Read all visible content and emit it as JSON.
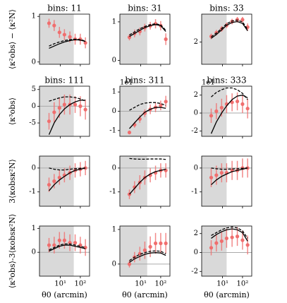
{
  "chart_data": [
    {
      "type": "line",
      "title": "bins: 11",
      "ylabel": "⟨κ²obs⟩ − ⟨κ²N⟩",
      "x": [
        2.7,
        4.9,
        9,
        16,
        30,
        55,
        100,
        180
      ],
      "xlim": [
        0.9,
        290
      ],
      "xticks": [
        10,
        100
      ],
      "log_x": true,
      "ylim": [
        -0.05,
        1.05
      ],
      "yticks": [
        0,
        1
      ],
      "shade_xmax": 47,
      "series": [
        {
          "style": "errorbar",
          "color": "#f06e6e",
          "values": [
            0.85,
            0.8,
            0.65,
            0.6,
            0.55,
            0.5,
            0.5,
            0.42
          ],
          "errors": [
            0.1,
            0.12,
            0.12,
            0.12,
            0.12,
            0.12,
            0.12,
            0.12
          ]
        },
        {
          "style": "solid",
          "color": "#000000",
          "values": [
            0.3,
            0.35,
            0.4,
            0.44,
            0.47,
            0.49,
            0.48,
            0.45
          ]
        },
        {
          "style": "dashed",
          "color": "#000000",
          "values": [
            0.35,
            0.4,
            0.44,
            0.47,
            0.49,
            0.5,
            0.49,
            0.46
          ]
        }
      ]
    },
    {
      "type": "line",
      "title": "bins: 31",
      "x": [
        2.7,
        4.9,
        9,
        16,
        30,
        55,
        100,
        180
      ],
      "xlim": [
        0.9,
        290
      ],
      "xticks": [
        10,
        100
      ],
      "log_x": true,
      "ylim": [
        -0.1,
        1.2
      ],
      "yticks": [
        0,
        1
      ],
      "shade_xmax": 21,
      "series": [
        {
          "style": "errorbar",
          "color": "#f06e6e",
          "values": [
            0.6,
            0.7,
            0.75,
            0.85,
            0.9,
            0.95,
            0.9,
            0.55
          ],
          "errors": [
            0.08,
            0.1,
            0.1,
            0.1,
            0.1,
            0.12,
            0.12,
            0.15
          ]
        },
        {
          "style": "solid",
          "color": "#000000",
          "values": [
            0.62,
            0.7,
            0.78,
            0.85,
            0.9,
            0.93,
            0.9,
            0.75
          ]
        },
        {
          "style": "dashed",
          "color": "#000000",
          "values": [
            0.66,
            0.74,
            0.82,
            0.88,
            0.93,
            0.95,
            0.92,
            0.78
          ]
        }
      ]
    },
    {
      "type": "line",
      "title": "bins: 33",
      "x": [
        2.7,
        4.9,
        9,
        16,
        30,
        55,
        100,
        180
      ],
      "xlim": [
        0.9,
        290
      ],
      "xticks": [
        10,
        100
      ],
      "log_x": true,
      "ylim": [
        0.8,
        3.5
      ],
      "yticks": [
        2
      ],
      "shade_xmax": 16,
      "series": [
        {
          "style": "errorbar",
          "color": "#f06e6e",
          "values": [
            2.3,
            2.5,
            2.7,
            2.9,
            3.1,
            3.2,
            3.2,
            2.8
          ],
          "errors": [
            0.15,
            0.15,
            0.15,
            0.15,
            0.15,
            0.15,
            0.15,
            0.2
          ]
        },
        {
          "style": "solid",
          "color": "#000000",
          "values": [
            2.2,
            2.4,
            2.65,
            2.9,
            3.05,
            3.1,
            3.0,
            2.6
          ]
        },
        {
          "style": "dashed",
          "color": "#000000",
          "values": [
            2.28,
            2.48,
            2.73,
            2.98,
            3.13,
            3.18,
            3.08,
            2.68
          ]
        }
      ]
    },
    {
      "type": "line",
      "title": "bins: 111",
      "ylabel": "⟨κ³obs⟩",
      "x": [
        2.7,
        4.9,
        9,
        16,
        30,
        55,
        100,
        180
      ],
      "xlim": [
        0.9,
        290
      ],
      "xticks": [
        10,
        100
      ],
      "log_x": true,
      "ylim": [
        -9,
        6
      ],
      "yticks": [
        -5,
        0,
        5
      ],
      "shade_xmax": 47,
      "hline": 0,
      "series": [
        {
          "style": "errorbar",
          "color": "#f06e6e",
          "values": [
            -4.5,
            -1.8,
            -0.5,
            0.5,
            0.5,
            0.5,
            0,
            -1
          ],
          "errors": [
            2.5,
            3,
            3,
            3,
            3,
            2.5,
            3,
            3
          ]
        },
        {
          "style": "solid",
          "color": "#000000",
          "values": [
            -8.5,
            -5,
            -2.5,
            -0.8,
            0.5,
            1.3,
            1.8,
            1.8
          ]
        },
        {
          "style": "dashed",
          "color": "#000000",
          "values": [
            1.5,
            2,
            2.5,
            2.8,
            2.8,
            2.6,
            2.2,
            1.5
          ]
        }
      ]
    },
    {
      "type": "line",
      "title": "bins: 311",
      "offset_label": "1e1",
      "x": [
        2.7,
        4.9,
        9,
        16,
        30,
        55,
        100,
        180
      ],
      "xlim": [
        0.9,
        290
      ],
      "xticks": [
        10,
        100
      ],
      "log_x": true,
      "ylim": [
        -1.3,
        1.3
      ],
      "yticks": [
        -1,
        0,
        1
      ],
      "shade_xmax": 21,
      "hline": 0,
      "series": [
        {
          "style": "errorbar",
          "color": "#f06e6e",
          "values": [
            -1.1,
            -0.7,
            -0.4,
            -0.1,
            0.1,
            0.2,
            0.3,
            0.5
          ],
          "errors": [
            0.1,
            0.15,
            0.2,
            0.2,
            0.25,
            0.25,
            0.25,
            0.3
          ]
        },
        {
          "style": "solid",
          "color": "#000000",
          "values": [
            -0.9,
            -0.6,
            -0.3,
            -0.05,
            0.1,
            0.2,
            0.2,
            0.15
          ]
        },
        {
          "style": "dashed",
          "color": "#000000",
          "values": [
            0.05,
            0.2,
            0.35,
            0.42,
            0.45,
            0.45,
            0.4,
            0.3
          ]
        }
      ]
    },
    {
      "type": "line",
      "title": "bins: 333",
      "offset_label": "1e1",
      "x": [
        2.7,
        4.9,
        9,
        16,
        30,
        55,
        100,
        180
      ],
      "xlim": [
        0.9,
        290
      ],
      "xticks": [
        10,
        100
      ],
      "log_x": true,
      "ylim": [
        -2.6,
        3
      ],
      "yticks": [
        -2,
        0,
        2
      ],
      "shade_xmax": 16,
      "hline": 0,
      "series": [
        {
          "style": "errorbar",
          "color": "#f06e6e",
          "values": [
            -0.3,
            0.2,
            0.6,
            1,
            1.2,
            1.3,
            1,
            0.5
          ],
          "errors": [
            0.8,
            0.9,
            1,
            1,
            1,
            1,
            1,
            1.1
          ]
        },
        {
          "style": "solid",
          "color": "#000000",
          "values": [
            -2.3,
            -1,
            0,
            0.8,
            1.5,
            1.9,
            2,
            1.7
          ]
        },
        {
          "style": "dashed",
          "color": "#000000",
          "values": [
            1.8,
            2.3,
            2.6,
            2.8,
            2.8,
            2.6,
            2.2,
            1.5
          ]
        }
      ]
    },
    {
      "type": "line",
      "ylabel": "3⟨κobsκ²N⟩",
      "x": [
        2.7,
        4.9,
        9,
        16,
        30,
        55,
        100,
        180
      ],
      "xlim": [
        0.9,
        290
      ],
      "xticks": [
        10,
        100
      ],
      "log_x": true,
      "ylim": [
        -1.6,
        0.5
      ],
      "yticks": [
        -1,
        0
      ],
      "shade_xmax": 47,
      "hline": 0,
      "series": [
        {
          "style": "errorbar",
          "color": "#f06e6e",
          "values": [
            -0.7,
            -0.55,
            -0.4,
            -0.3,
            -0.2,
            -0.1,
            -0.05,
            0
          ],
          "errors": [
            0.3,
            0.3,
            0.3,
            0.3,
            0.3,
            0.3,
            0.3,
            0.3
          ]
        },
        {
          "style": "solid",
          "color": "#000000",
          "values": [
            -0.95,
            -0.7,
            -0.5,
            -0.35,
            -0.2,
            -0.1,
            -0.05,
            0
          ]
        },
        {
          "style": "dashed",
          "color": "#000000",
          "values": [
            0,
            -0.05,
            -0.08,
            -0.08,
            -0.05,
            -0.03,
            -0.01,
            0
          ]
        }
      ]
    },
    {
      "type": "line",
      "x": [
        2.7,
        4.9,
        9,
        16,
        30,
        55,
        100,
        180
      ],
      "xlim": [
        0.9,
        290
      ],
      "xticks": [
        10,
        100
      ],
      "log_x": true,
      "ylim": [
        -1.6,
        0.5
      ],
      "yticks": [
        -1,
        0
      ],
      "shade_xmax": 21,
      "hline": 0,
      "series": [
        {
          "style": "errorbar",
          "color": "#f06e6e",
          "values": [
            -1.1,
            -0.8,
            -0.6,
            -0.4,
            -0.3,
            -0.2,
            -0.1,
            -0.1
          ],
          "errors": [
            0.2,
            0.25,
            0.3,
            0.3,
            0.3,
            0.3,
            0.3,
            0.3
          ]
        },
        {
          "style": "solid",
          "color": "#000000",
          "values": [
            -1.1,
            -0.85,
            -0.6,
            -0.4,
            -0.25,
            -0.15,
            -0.1,
            -0.05
          ]
        },
        {
          "style": "dashed",
          "color": "#000000",
          "values": [
            0.4,
            0.38,
            0.37,
            0.37,
            0.38,
            0.38,
            0.38,
            0.36
          ]
        }
      ]
    },
    {
      "type": "line",
      "x": [
        2.7,
        4.9,
        9,
        16,
        30,
        55,
        100,
        180
      ],
      "xlim": [
        0.9,
        290
      ],
      "xticks": [
        10,
        100
      ],
      "log_x": true,
      "ylim": [
        -1.6,
        0.5
      ],
      "yticks": [
        -1,
        0
      ],
      "shade_xmax": 16,
      "hline": 0,
      "series": [
        {
          "style": "errorbar",
          "color": "#f06e6e",
          "values": [
            -0.4,
            -0.3,
            -0.2,
            -0.2,
            -0.1,
            -0.1,
            0,
            0
          ],
          "errors": [
            0.4,
            0.4,
            0.4,
            0.4,
            0.4,
            0.4,
            0.4,
            0.4
          ]
        },
        {
          "style": "solid",
          "color": "#000000",
          "values": [
            -0.7,
            -0.5,
            -0.35,
            -0.25,
            -0.15,
            -0.1,
            -0.05,
            0
          ]
        },
        {
          "style": "dashed",
          "color": "#000000",
          "values": [
            0,
            -0.03,
            -0.05,
            -0.05,
            -0.04,
            -0.03,
            -0.01,
            0
          ]
        }
      ]
    },
    {
      "type": "line",
      "ylabel": "⟨κ³obs⟩-3⟨κobsκ²N⟩",
      "xlabel": "θ0 (arcmin)",
      "x": [
        2.7,
        4.9,
        9,
        16,
        30,
        55,
        100,
        180
      ],
      "xlim": [
        0.9,
        290
      ],
      "xticks": [
        {
          "value": 10,
          "label": "10¹"
        },
        {
          "value": 100,
          "label": "10²"
        }
      ],
      "log_x": true,
      "ylim": [
        -1,
        1.1
      ],
      "yticks": [
        0,
        1
      ],
      "shade_xmax": 47,
      "hline": 0,
      "series": [
        {
          "style": "errorbar",
          "color": "#f06e6e",
          "values": [
            0.3,
            0.3,
            0.5,
            0.5,
            0.4,
            0.4,
            0.3,
            0.2
          ],
          "errors": [
            0.3,
            0.35,
            0.35,
            0.35,
            0.35,
            0.35,
            0.35,
            0.35
          ]
        },
        {
          "style": "solid",
          "color": "#000000",
          "values": [
            0.05,
            0.15,
            0.25,
            0.3,
            0.3,
            0.25,
            0.2,
            0.15
          ]
        },
        {
          "style": "dashed",
          "color": "#000000",
          "values": [
            0.1,
            0.2,
            0.3,
            0.35,
            0.35,
            0.3,
            0.25,
            0.2
          ]
        }
      ]
    },
    {
      "type": "line",
      "xlabel": "θ0 (arcmin)",
      "x": [
        2.7,
        4.9,
        9,
        16,
        30,
        55,
        100,
        180
      ],
      "xlim": [
        0.9,
        290
      ],
      "xticks": [
        {
          "value": 10,
          "label": "10¹"
        },
        {
          "value": 100,
          "label": "10²"
        }
      ],
      "log_x": true,
      "ylim": [
        -0.35,
        1.1
      ],
      "yticks": [
        0,
        1
      ],
      "shade_xmax": 21,
      "hline": 0,
      "series": [
        {
          "style": "errorbar",
          "color": "#f06e6e",
          "values": [
            0,
            0.2,
            0.3,
            0.4,
            0.5,
            0.6,
            0.6,
            0.6
          ],
          "errors": [
            0.1,
            0.15,
            0.2,
            0.25,
            0.3,
            0.3,
            0.3,
            0.3
          ]
        },
        {
          "style": "solid",
          "color": "#000000",
          "values": [
            0.05,
            0.15,
            0.22,
            0.28,
            0.32,
            0.33,
            0.32,
            0.25
          ]
        },
        {
          "style": "dashed",
          "color": "#000000",
          "values": [
            0.1,
            0.2,
            0.28,
            0.33,
            0.37,
            0.38,
            0.37,
            0.3
          ]
        }
      ]
    },
    {
      "type": "line",
      "xlabel": "θ0 (arcmin)",
      "x": [
        2.7,
        4.9,
        9,
        16,
        30,
        55,
        100,
        180
      ],
      "xlim": [
        0.9,
        290
      ],
      "xticks": [
        {
          "value": 10,
          "label": "10¹"
        },
        {
          "value": 100,
          "label": "10²"
        }
      ],
      "log_x": true,
      "ylim": [
        -2.5,
        2.8
      ],
      "yticks": [
        -2,
        0,
        2
      ],
      "shade_xmax": 16,
      "hline": 0,
      "series": [
        {
          "style": "errorbar",
          "color": "#f06e6e",
          "values": [
            0.5,
            1,
            1.2,
            1.5,
            1.6,
            1.7,
            1.3,
            0.8
          ],
          "errors": [
            0.8,
            0.9,
            1,
            1,
            1,
            1,
            1,
            1
          ]
        },
        {
          "style": "solid",
          "color": "#000000",
          "values": [
            1.5,
            1.9,
            2.2,
            2.4,
            2.5,
            2.4,
            2.1,
            1.2
          ]
        },
        {
          "style": "dashed",
          "color": "#000000",
          "values": [
            1.8,
            2.1,
            2.4,
            2.6,
            2.7,
            2.6,
            2.3,
            1.5
          ]
        }
      ]
    }
  ]
}
